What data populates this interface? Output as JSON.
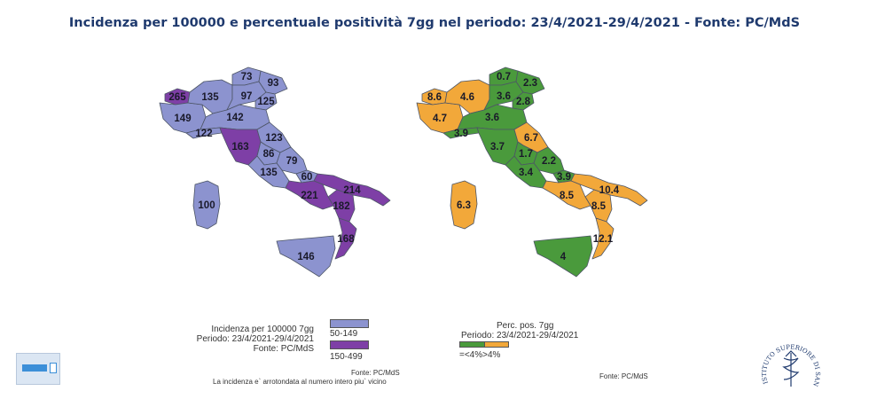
{
  "title": "Incidenza per 100000 e percentuale positività 7gg nel periodo: 23/4/2021-29/4/2021 - Fonte: PC/MdS",
  "colors": {
    "low_incidence": "#8c93cf",
    "high_incidence": "#7e3fa6",
    "positivity_low": "#4a9a3c",
    "positivity_high": "#f2a83a",
    "title": "#1f3a6e"
  },
  "incidence_map": {
    "regions": [
      {
        "name": "Valle d'Aosta",
        "value": "265",
        "level": "high"
      },
      {
        "name": "Piemonte",
        "value": "149",
        "level": "low"
      },
      {
        "name": "Lombardia",
        "value": "135",
        "level": "low"
      },
      {
        "name": "Trentino",
        "value": "73",
        "level": "low"
      },
      {
        "name": "Veneto",
        "value": "97",
        "level": "low"
      },
      {
        "name": "Friuli Venezia Giulia",
        "value": "93",
        "level": "low"
      },
      {
        "name": "Veneto est",
        "value": "125",
        "level": "low"
      },
      {
        "name": "Emilia-Romagna",
        "value": "142",
        "level": "low"
      },
      {
        "name": "Liguria",
        "value": "122",
        "level": "low"
      },
      {
        "name": "Toscana",
        "value": "163",
        "level": "high"
      },
      {
        "name": "Marche",
        "value": "123",
        "level": "low"
      },
      {
        "name": "Umbria",
        "value": "86",
        "level": "low"
      },
      {
        "name": "Abruzzo",
        "value": "79",
        "level": "low"
      },
      {
        "name": "Lazio",
        "value": "135",
        "level": "low"
      },
      {
        "name": "Molise",
        "value": "60",
        "level": "low"
      },
      {
        "name": "Puglia",
        "value": "214",
        "level": "high"
      },
      {
        "name": "Basilicata",
        "value": "182",
        "level": "high"
      },
      {
        "name": "Campania",
        "value": "221",
        "level": "high"
      },
      {
        "name": "Calabria",
        "value": "168",
        "level": "high"
      },
      {
        "name": "Sardegna",
        "value": "100",
        "level": "low"
      },
      {
        "name": "Sicilia",
        "value": "146",
        "level": "low"
      }
    ],
    "legend": {
      "line1": "Incidenza per 100000 7gg",
      "line2": "Periodo: 23/4/2021-29/4/2021",
      "line3": "Fonte: PC/MdS",
      "range_low": "50-149",
      "range_high": "150-499",
      "source": "Fonte: PC/MdS",
      "note": "La incidenza e` arrotondata al numero intero piu` vicino"
    }
  },
  "positivity_map": {
    "regions": [
      {
        "name": "Valle d'Aosta",
        "value": "8.6",
        "level": "high"
      },
      {
        "name": "Piemonte",
        "value": "4.7",
        "level": "high"
      },
      {
        "name": "Lombardia",
        "value": "4.6",
        "level": "high"
      },
      {
        "name": "Trentino",
        "value": "0.7",
        "level": "low"
      },
      {
        "name": "Veneto",
        "value": "3.6",
        "level": "low"
      },
      {
        "name": "Friuli Venezia Giulia",
        "value": "2.3",
        "level": "low"
      },
      {
        "name": "Veneto est",
        "value": "2.8",
        "level": "low"
      },
      {
        "name": "Emilia-Romagna",
        "value": "3.6",
        "level": "low"
      },
      {
        "name": "Liguria",
        "value": "3.9",
        "level": "low"
      },
      {
        "name": "Toscana",
        "value": "3.7",
        "level": "low"
      },
      {
        "name": "Marche",
        "value": "6.7",
        "level": "high"
      },
      {
        "name": "Umbria",
        "value": "1.7",
        "level": "low"
      },
      {
        "name": "Abruzzo",
        "value": "2.2",
        "level": "low"
      },
      {
        "name": "Lazio",
        "value": "3.4",
        "level": "low"
      },
      {
        "name": "Molise",
        "value": "3.9",
        "level": "low"
      },
      {
        "name": "Puglia",
        "value": "10.4",
        "level": "high"
      },
      {
        "name": "Basilicata",
        "value": "8.5",
        "level": "high"
      },
      {
        "name": "Campania",
        "value": "8.5",
        "level": "high"
      },
      {
        "name": "Calabria",
        "value": "12.1",
        "level": "high"
      },
      {
        "name": "Sardegna",
        "value": "6.3",
        "level": "high"
      },
      {
        "name": "Sicilia",
        "value": "4",
        "level": "low"
      }
    ],
    "legend": {
      "line1": "Perc. pos. 7gg",
      "line2": "Periodo: 23/4/2021-29/4/2021",
      "range": "=<4%>4%",
      "source": "Fonte: PC/MdS"
    }
  },
  "iss_logo_text": "ISTITUTO SUPERIORE DI SANITA"
}
